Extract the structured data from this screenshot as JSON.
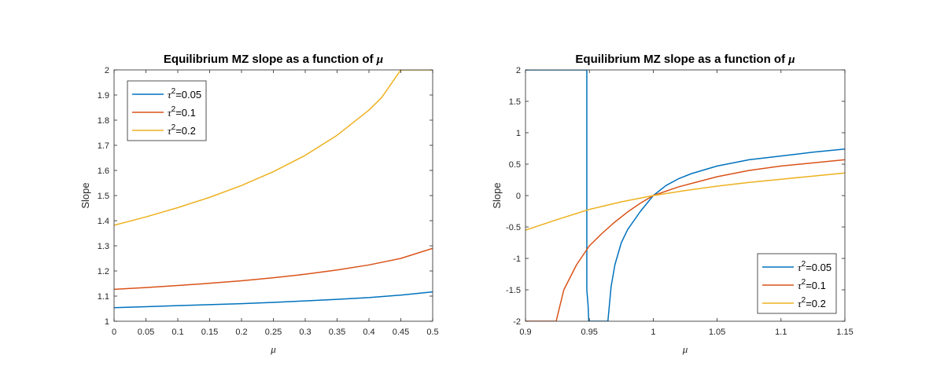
{
  "chart_data": [
    {
      "type": "line",
      "title": "Equilibrium MZ slope as a function of μ",
      "title_prefix": "Equilibrium MZ slope as a function of ",
      "title_symbol": "μ",
      "xlabel": "μ",
      "ylabel": "Slope",
      "xlim": [
        0,
        0.5
      ],
      "ylim": [
        1,
        2
      ],
      "xticks": [
        0,
        0.05,
        0.1,
        0.15,
        0.2,
        0.25,
        0.3,
        0.35,
        0.4,
        0.45,
        0.5
      ],
      "xtick_labels": [
        "0",
        "0.05",
        "0.1",
        "0.15",
        "0.2",
        "0.25",
        "0.3",
        "0.35",
        "0.4",
        "0.45",
        "0.5"
      ],
      "yticks": [
        1,
        1.1,
        1.2,
        1.3,
        1.4,
        1.5,
        1.6,
        1.7,
        1.8,
        1.9,
        2
      ],
      "ytick_labels": [
        "1",
        "1.1",
        "1.2",
        "1.3",
        "1.4",
        "1.5",
        "1.6",
        "1.7",
        "1.8",
        "1.9",
        "2"
      ],
      "grid": false,
      "legend_position": "top-left",
      "series": [
        {
          "name": "τ²=0.05",
          "legend_base": "τ",
          "legend_sup": "2",
          "legend_value": "=0.05",
          "color": "#0072BD",
          "x": [
            0,
            0.05,
            0.1,
            0.15,
            0.2,
            0.25,
            0.3,
            0.35,
            0.4,
            0.45,
            0.5
          ],
          "y": [
            1.054,
            1.058,
            1.062,
            1.066,
            1.07,
            1.075,
            1.081,
            1.087,
            1.094,
            1.104,
            1.117
          ]
        },
        {
          "name": "τ²=0.1",
          "legend_base": "τ",
          "legend_sup": "2",
          "legend_value": "=0.1",
          "color": "#D95319",
          "x": [
            0,
            0.05,
            0.1,
            0.15,
            0.2,
            0.25,
            0.3,
            0.35,
            0.4,
            0.45,
            0.5
          ],
          "y": [
            1.127,
            1.134,
            1.142,
            1.151,
            1.161,
            1.173,
            1.187,
            1.204,
            1.224,
            1.25,
            1.29
          ]
        },
        {
          "name": "τ²=0.2",
          "legend_base": "τ",
          "legend_sup": "2",
          "legend_value": "=0.2",
          "color": "#EDB120",
          "x": [
            0,
            0.05,
            0.1,
            0.15,
            0.2,
            0.25,
            0.3,
            0.35,
            0.4,
            0.42,
            0.45,
            0.5
          ],
          "y": [
            1.382,
            1.415,
            1.452,
            1.493,
            1.54,
            1.595,
            1.66,
            1.74,
            1.84,
            1.89,
            2.0,
            2.0
          ]
        }
      ]
    },
    {
      "type": "line",
      "title": "Equilibrium MZ slope as a function of μ",
      "title_prefix": "Equilibrium MZ slope as a function of ",
      "title_symbol": "μ",
      "xlabel": "μ",
      "ylabel": "Slope",
      "xlim": [
        0.9,
        1.15
      ],
      "ylim": [
        -2,
        2
      ],
      "xticks": [
        0.9,
        0.95,
        1,
        1.05,
        1.1,
        1.15
      ],
      "xtick_labels": [
        "0.9",
        "0.95",
        "1",
        "1.05",
        "1.1",
        "1.15"
      ],
      "yticks": [
        -2,
        -1.5,
        -1,
        -0.5,
        0,
        0.5,
        1,
        1.5,
        2
      ],
      "ytick_labels": [
        "-2",
        "-1.5",
        "-1",
        "-0.5",
        "0",
        "0.5",
        "1",
        "1.5",
        "2"
      ],
      "grid": false,
      "legend_position": "bottom-right",
      "series": [
        {
          "name": "τ²=0.05",
          "legend_base": "τ",
          "legend_sup": "2",
          "legend_value": "=0.05",
          "color": "#0072BD",
          "x": [
            0.9,
            0.948,
            0.948,
            0.949,
            0.9495,
            0.9645,
            0.967,
            0.97,
            0.975,
            0.98,
            0.99,
            1.0,
            1.01,
            1.02,
            1.03,
            1.05,
            1.075,
            1.1,
            1.125,
            1.15
          ],
          "y": [
            2,
            2,
            -1.5,
            -1.75,
            -2,
            -2,
            -1.45,
            -1.1,
            -0.75,
            -0.54,
            -0.25,
            0,
            0.16,
            0.27,
            0.35,
            0.47,
            0.57,
            0.63,
            0.69,
            0.74
          ]
        },
        {
          "name": "τ²=0.1",
          "legend_base": "τ",
          "legend_sup": "2",
          "legend_value": "=0.1",
          "color": "#D95319",
          "x": [
            0.9,
            0.924,
            0.93,
            0.94,
            0.95,
            0.96,
            0.97,
            0.98,
            0.99,
            1.0,
            1.02,
            1.05,
            1.075,
            1.1,
            1.125,
            1.15
          ],
          "y": [
            -2,
            -2,
            -1.5,
            -1.1,
            -0.8,
            -0.6,
            -0.42,
            -0.26,
            -0.12,
            0,
            0.14,
            0.3,
            0.4,
            0.47,
            0.52,
            0.57
          ]
        },
        {
          "name": "τ²=0.2",
          "legend_base": "τ",
          "legend_sup": "2",
          "legend_value": "=0.2",
          "color": "#EDB120",
          "x": [
            0.9,
            0.925,
            0.95,
            0.975,
            1.0,
            1.025,
            1.05,
            1.075,
            1.1,
            1.125,
            1.15
          ],
          "y": [
            -0.55,
            -0.38,
            -0.22,
            -0.1,
            0,
            0.08,
            0.15,
            0.21,
            0.26,
            0.31,
            0.36
          ]
        }
      ]
    }
  ]
}
